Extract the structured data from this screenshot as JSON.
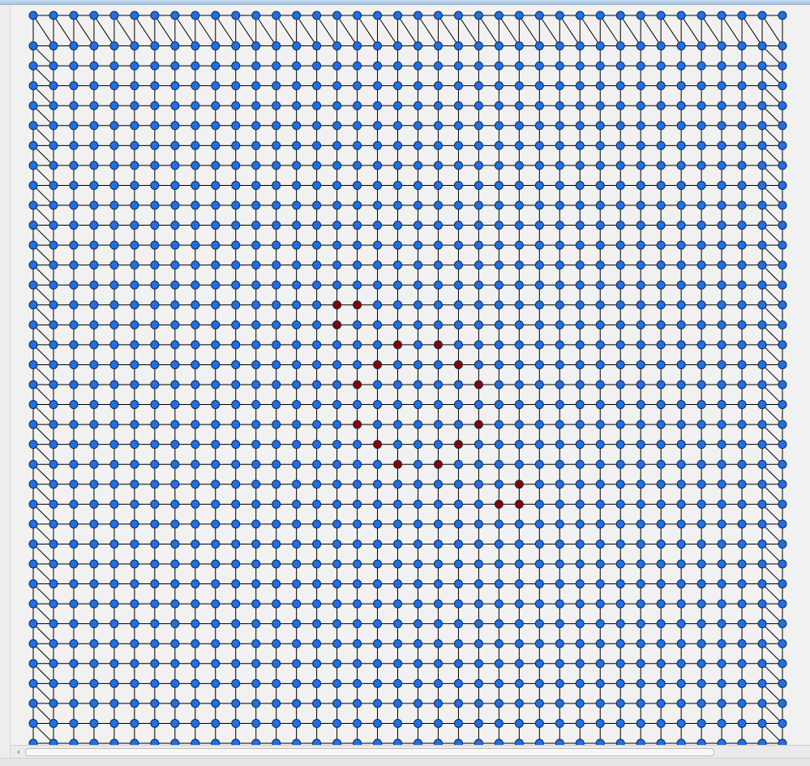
{
  "graph": {
    "columns": 38,
    "rows": 37,
    "node_color": "#1f6fe6",
    "node_stroke": "#0d2a55",
    "highlight_color": "#8b0000",
    "edge_color": "#000000",
    "highlighted_nodes": [
      [
        15,
        14
      ],
      [
        16,
        14
      ],
      [
        15,
        15
      ],
      [
        18,
        16
      ],
      [
        20,
        16
      ],
      [
        17,
        17
      ],
      [
        21,
        17
      ],
      [
        16,
        18
      ],
      [
        22,
        18
      ],
      [
        16,
        20
      ],
      [
        22,
        20
      ],
      [
        17,
        21
      ],
      [
        21,
        21
      ],
      [
        18,
        22
      ],
      [
        20,
        22
      ],
      [
        24,
        23
      ],
      [
        23,
        24
      ],
      [
        24,
        24
      ]
    ]
  },
  "scrollbar": {
    "left_arrow": "‹"
  }
}
